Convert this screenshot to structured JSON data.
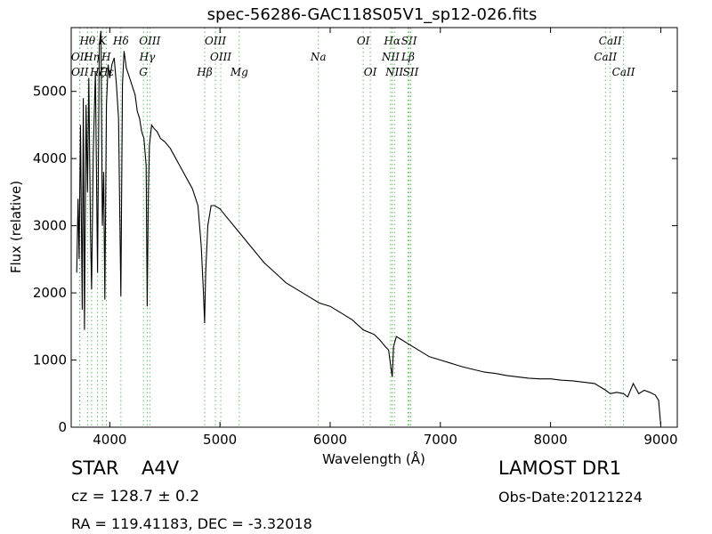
{
  "chart_data": {
    "type": "line",
    "title": "spec-56286-GAC118S05V1_sp12-026.fits",
    "xlabel": "Wavelength (Å)",
    "ylabel": "Flux (relative)",
    "xlim": [
      3650,
      9150
    ],
    "ylim": [
      0,
      5950
    ],
    "x_ticks": [
      4000,
      5000,
      6000,
      7000,
      8000,
      9000
    ],
    "y_ticks": [
      0,
      1000,
      2000,
      3000,
      4000,
      5000
    ],
    "grid": false,
    "line_color": "#000000",
    "marker_color": "#66bb66",
    "series": [
      {
        "x": [
          3700,
          3712,
          3722,
          3734,
          3750,
          3760,
          3770,
          3785,
          3798,
          3810,
          3825,
          3835,
          3850,
          3870,
          3889,
          3905,
          3920,
          3933,
          3945,
          3955,
          3970,
          3985,
          4000,
          4020,
          4040,
          4060,
          4080,
          4101,
          4115,
          4130,
          4150,
          4170,
          4190,
          4210,
          4230,
          4250,
          4270,
          4290,
          4310,
          4330,
          4340,
          4350,
          4360,
          4380,
          4400,
          4430,
          4460,
          4500,
          4550,
          4600,
          4650,
          4700,
          4750,
          4800,
          4830,
          4850,
          4861,
          4870,
          4890,
          4920,
          4950,
          5000,
          5050,
          5100,
          5150,
          5200,
          5250,
          5300,
          5400,
          5500,
          5600,
          5700,
          5800,
          5900,
          6000,
          6100,
          6200,
          6300,
          6400,
          6450,
          6500,
          6530,
          6550,
          6563,
          6575,
          6600,
          6650,
          6700,
          6800,
          6900,
          7000,
          7100,
          7200,
          7300,
          7400,
          7500,
          7600,
          7700,
          7800,
          7900,
          8000,
          8100,
          8200,
          8300,
          8400,
          8500,
          8542,
          8600,
          8662,
          8700,
          8750,
          8800,
          8850,
          8900,
          8950,
          8980,
          9000
        ],
        "y": [
          2300,
          3400,
          2500,
          4500,
          1750,
          4900,
          1450,
          4800,
          3500,
          5200,
          2900,
          2050,
          4100,
          5300,
          2300,
          5700,
          5900,
          3000,
          3800,
          1900,
          4800,
          5400,
          5200,
          5400,
          5500,
          5100,
          4600,
          1950,
          5100,
          5600,
          5350,
          5250,
          5150,
          5050,
          4950,
          4700,
          4600,
          4400,
          4300,
          3900,
          1800,
          3500,
          4200,
          4500,
          4450,
          4400,
          4300,
          4250,
          4150,
          4000,
          3850,
          3700,
          3550,
          3300,
          2700,
          2000,
          1550,
          2300,
          3000,
          3300,
          3300,
          3250,
          3150,
          3050,
          2950,
          2850,
          2750,
          2650,
          2450,
          2300,
          2150,
          2050,
          1950,
          1850,
          1800,
          1700,
          1600,
          1450,
          1380,
          1300,
          1200,
          1150,
          900,
          750,
          1200,
          1350,
          1300,
          1250,
          1150,
          1050,
          1000,
          950,
          900,
          860,
          820,
          800,
          770,
          750,
          730,
          720,
          720,
          700,
          690,
          670,
          650,
          550,
          500,
          520,
          500,
          450,
          650,
          500,
          550,
          520,
          480,
          400,
          30
        ]
      }
    ],
    "line_markers": [
      {
        "label": "Hθ",
        "x": 3798,
        "row": 0
      },
      {
        "label": "OII",
        "x": 3727,
        "row": 1
      },
      {
        "label": "Hη",
        "x": 3835,
        "row": 1
      },
      {
        "label": "OII",
        "x": 3729,
        "row": 2
      },
      {
        "label": "Hζ",
        "x": 3889,
        "row": 2
      },
      {
        "label": "K",
        "x": 3934,
        "row": 0
      },
      {
        "label": "H",
        "x": 3968,
        "row": 1
      },
      {
        "label": "Hε",
        "x": 3970,
        "row": 2
      },
      {
        "label": "Hδ",
        "x": 4101,
        "row": 0
      },
      {
        "label": "OIII",
        "x": 4363,
        "row": 0
      },
      {
        "label": "Hγ",
        "x": 4340,
        "row": 1
      },
      {
        "label": "G",
        "x": 4305,
        "row": 2
      },
      {
        "label": "OIII",
        "x": 4959,
        "row": 0
      },
      {
        "label": "OIII",
        "x": 5007,
        "row": 1
      },
      {
        "label": "Hβ",
        "x": 4861,
        "row": 2
      },
      {
        "label": "Mg",
        "x": 5175,
        "row": 2
      },
      {
        "label": "Na",
        "x": 5893,
        "row": 1
      },
      {
        "label": "OI",
        "x": 6300,
        "row": 0
      },
      {
        "label": "OI",
        "x": 6364,
        "row": 2
      },
      {
        "label": "Hα",
        "x": 6563,
        "row": 0
      },
      {
        "label": "SII",
        "x": 6716,
        "row": 0
      },
      {
        "label": "NII",
        "x": 6548,
        "row": 1
      },
      {
        "label": "Lβ",
        "x": 6707,
        "row": 1
      },
      {
        "label": "NII",
        "x": 6583,
        "row": 2
      },
      {
        "label": "SII",
        "x": 6731,
        "row": 2
      },
      {
        "label": "CaII",
        "x": 8542,
        "row": 0
      },
      {
        "label": "CaII",
        "x": 8498,
        "row": 1
      },
      {
        "label": "CaII",
        "x": 8662,
        "row": 2
      }
    ]
  },
  "footer": {
    "object_class": "STAR",
    "subclass": "A4V",
    "survey": "LAMOST DR1",
    "cz": "cz = 128.7 ± 0.2",
    "obs_date": "Obs-Date:20121224",
    "coords": "RA = 119.41183, DEC = -3.32018"
  }
}
